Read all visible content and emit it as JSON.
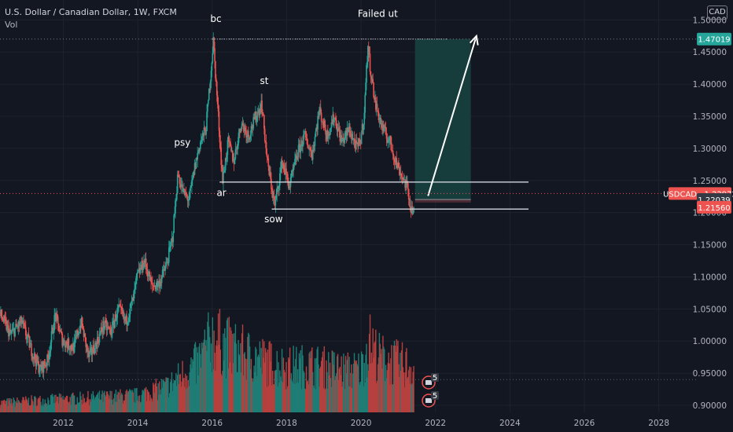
{
  "header": {
    "title": "U.S. Dollar / Canadian Dollar, 1W, FXCM",
    "volume_label": "Vol",
    "currency": "CAD"
  },
  "chart_data": {
    "type": "candlestick",
    "symbol": "USDCAD",
    "interval": "1W",
    "source": "FXCM",
    "xlim": [
      2010.3,
      2029.0
    ],
    "ylim": [
      0.889,
      1.531
    ],
    "x_ticks": [
      2012,
      2014,
      2016,
      2018,
      2020,
      2022,
      2024,
      2026,
      2028
    ],
    "x_tick_labels": [
      "2012",
      "2014",
      "2016",
      "2018",
      "2020",
      "2022",
      "2024",
      "2026",
      "2028"
    ],
    "y_ticks": [
      0.9,
      0.95,
      1.0,
      1.05,
      1.1,
      1.15,
      1.2,
      1.25,
      1.3,
      1.35,
      1.4,
      1.45,
      1.5
    ],
    "y_tick_labels": [
      "0.90000",
      "0.95000",
      "1.00000",
      "1.05000",
      "1.10000",
      "1.15000",
      "1.20000",
      "1.25000",
      "1.30000",
      "1.35000",
      "1.40000",
      "1.45000",
      "1.50000"
    ],
    "price_path": [
      [
        2010.3,
        1.045
      ],
      [
        2010.6,
        1.01
      ],
      [
        2010.9,
        1.03
      ],
      [
        2011.2,
        0.98
      ],
      [
        2011.4,
        0.955
      ],
      [
        2011.6,
        0.97
      ],
      [
        2011.8,
        1.04
      ],
      [
        2012.0,
        1.0
      ],
      [
        2012.3,
        0.99
      ],
      [
        2012.5,
        1.03
      ],
      [
        2012.7,
        0.975
      ],
      [
        2012.9,
        0.995
      ],
      [
        2013.1,
        1.025
      ],
      [
        2013.3,
        1.015
      ],
      [
        2013.5,
        1.05
      ],
      [
        2013.7,
        1.03
      ],
      [
        2013.9,
        1.065
      ],
      [
        2014.0,
        1.1
      ],
      [
        2014.2,
        1.125
      ],
      [
        2014.4,
        1.085
      ],
      [
        2014.6,
        1.09
      ],
      [
        2014.8,
        1.12
      ],
      [
        2014.95,
        1.16
      ],
      [
        2015.1,
        1.26
      ],
      [
        2015.25,
        1.23
      ],
      [
        2015.4,
        1.22
      ],
      [
        2015.55,
        1.27
      ],
      [
        2015.7,
        1.31
      ],
      [
        2015.85,
        1.33
      ],
      [
        2016.0,
        1.43
      ],
      [
        2016.05,
        1.468
      ],
      [
        2016.15,
        1.38
      ],
      [
        2016.3,
        1.25
      ],
      [
        2016.45,
        1.31
      ],
      [
        2016.6,
        1.28
      ],
      [
        2016.8,
        1.34
      ],
      [
        2017.0,
        1.32
      ],
      [
        2017.2,
        1.35
      ],
      [
        2017.35,
        1.37
      ],
      [
        2017.5,
        1.28
      ],
      [
        2017.7,
        1.21
      ],
      [
        2017.9,
        1.28
      ],
      [
        2018.1,
        1.24
      ],
      [
        2018.3,
        1.29
      ],
      [
        2018.5,
        1.32
      ],
      [
        2018.7,
        1.29
      ],
      [
        2018.9,
        1.36
      ],
      [
        2019.1,
        1.32
      ],
      [
        2019.3,
        1.35
      ],
      [
        2019.5,
        1.31
      ],
      [
        2019.7,
        1.33
      ],
      [
        2019.9,
        1.3
      ],
      [
        2020.0,
        1.31
      ],
      [
        2020.1,
        1.35
      ],
      [
        2020.2,
        1.46
      ],
      [
        2020.28,
        1.42
      ],
      [
        2020.4,
        1.37
      ],
      [
        2020.6,
        1.33
      ],
      [
        2020.8,
        1.31
      ],
      [
        2020.95,
        1.28
      ],
      [
        2021.1,
        1.26
      ],
      [
        2021.25,
        1.24
      ],
      [
        2021.35,
        1.21
      ],
      [
        2021.42,
        1.2016
      ]
    ],
    "volume_ylim": [
      0,
      110
    ],
    "volume_path": [
      [
        2010.3,
        10
      ],
      [
        2011.0,
        12
      ],
      [
        2012.0,
        14
      ],
      [
        2013.0,
        16
      ],
      [
        2014.0,
        18
      ],
      [
        2014.8,
        28
      ],
      [
        2015.2,
        40
      ],
      [
        2015.6,
        52
      ],
      [
        2016.0,
        80
      ],
      [
        2016.4,
        70
      ],
      [
        2017.0,
        60
      ],
      [
        2017.6,
        52
      ],
      [
        2018.0,
        48
      ],
      [
        2018.6,
        50
      ],
      [
        2019.0,
        48
      ],
      [
        2019.6,
        44
      ],
      [
        2020.0,
        46
      ],
      [
        2020.2,
        75
      ],
      [
        2020.5,
        58
      ],
      [
        2021.0,
        52
      ],
      [
        2021.4,
        48
      ]
    ],
    "annotations": [
      {
        "text": "bc",
        "x": 2016.1,
        "y": 1.497
      },
      {
        "text": "Failed ut",
        "x": 2020.45,
        "y": 1.505
      },
      {
        "text": "st",
        "x": 2017.4,
        "y": 1.4
      },
      {
        "text": "psy",
        "x": 2015.2,
        "y": 1.304
      },
      {
        "text": "ar",
        "x": 2016.25,
        "y": 1.226
      },
      {
        "text": "sow",
        "x": 2017.65,
        "y": 1.185
      }
    ],
    "lines": [
      {
        "name": "top-dotted",
        "x1": 2016.0,
        "y1": 1.4702,
        "x2": 2022.3,
        "y2": 1.4702
      },
      {
        "name": "ar-level",
        "x1": 2016.2,
        "y1": 1.2475,
        "x2": 2024.5,
        "y2": 1.2475
      },
      {
        "name": "sow-level",
        "x1": 2017.6,
        "y1": 1.2055,
        "x2": 2024.5,
        "y2": 1.2055
      }
    ],
    "arrow": {
      "x1": 2021.8,
      "y1": 1.226,
      "x2": 2023.1,
      "y2": 1.475
    },
    "position": {
      "x1": 2021.45,
      "x2": 2022.95,
      "entry": 1.2204,
      "target": 1.4702,
      "stop": 1.2156
    },
    "price_tags": [
      {
        "label": "1.47019",
        "price": 1.4702,
        "color": "#26a69a"
      },
      {
        "label": "USDCAD · 1.22972",
        "price": 1.2297,
        "color": "#ef5350"
      },
      {
        "label": "1.22039",
        "price": 1.2204,
        "color": "#363a45"
      },
      {
        "label": "1.21560",
        "price": 1.2156,
        "color": "#ef5350"
      }
    ],
    "event_marker_counts": [
      "5",
      "5"
    ]
  },
  "colors": {
    "up": "#26a69a",
    "down": "#ef5350",
    "up_volume": "#1e7d74",
    "down_volume": "#b5403f",
    "position_fill": "#17403f",
    "grid": "#1e222d"
  }
}
